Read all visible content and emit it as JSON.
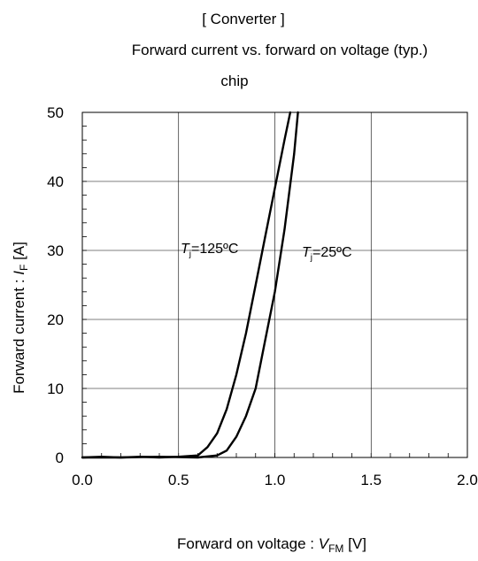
{
  "chart_data": {
    "type": "line",
    "title_lines": [
      "[ Converter ]",
      "Forward current  vs.  forward on voltage  (typ.)",
      "chip"
    ],
    "xlabel": {
      "text": "Forward on voltage : ",
      "var": "V",
      "sub": "FM",
      "unit": " [V]"
    },
    "ylabel": {
      "text": "Forward current : ",
      "var": "I",
      "sub": "F",
      "unit": " [A]"
    },
    "xlim": [
      0,
      2.0
    ],
    "ylim": [
      0,
      50
    ],
    "x_ticks": [
      "0.0",
      "0.5",
      "1.0",
      "1.5",
      "2.0"
    ],
    "y_ticks": [
      "0",
      "10",
      "20",
      "30",
      "40",
      "50"
    ],
    "x_tick_values": [
      0,
      0.5,
      1.0,
      1.5,
      2.0
    ],
    "y_tick_values": [
      0,
      10,
      20,
      30,
      40,
      50
    ],
    "x_minor_step": 0.1,
    "y_minor_step": 2,
    "grid": true,
    "series": [
      {
        "label": {
          "var": "T",
          "sub": "j",
          "text": "=125ºC"
        },
        "color": "#000000",
        "x": [
          0.0,
          0.1,
          0.2,
          0.3,
          0.4,
          0.5,
          0.55,
          0.6,
          0.65,
          0.7,
          0.75,
          0.8,
          0.85,
          0.9,
          0.95,
          1.0,
          1.05,
          1.08
        ],
        "y": [
          0.0,
          0.1,
          0.0,
          0.1,
          0.0,
          0.1,
          0.2,
          0.3,
          1.5,
          3.5,
          7.0,
          12.0,
          18.0,
          25.0,
          32.0,
          39.0,
          46.0,
          50.0
        ]
      },
      {
        "label": {
          "var": "T",
          "sub": "j",
          "text": "=25ºC"
        },
        "color": "#000000",
        "x": [
          0.0,
          0.2,
          0.4,
          0.6,
          0.7,
          0.75,
          0.8,
          0.85,
          0.9,
          0.95,
          1.0,
          1.05,
          1.1,
          1.12
        ],
        "y": [
          0.0,
          0.0,
          0.1,
          0.0,
          0.3,
          1.0,
          3.0,
          6.0,
          10.0,
          17.0,
          24.0,
          33.0,
          44.0,
          50.0
        ]
      }
    ]
  }
}
